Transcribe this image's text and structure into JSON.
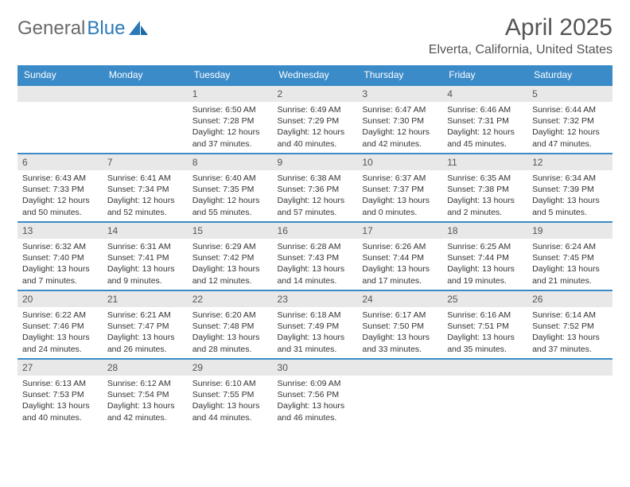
{
  "brand": {
    "part1": "General",
    "part2": "Blue"
  },
  "title": "April 2025",
  "location": "Elverta, California, United States",
  "header_bg": "#3b8bc8",
  "daynum_bg": "#e8e8e8",
  "weekdays": [
    "Sunday",
    "Monday",
    "Tuesday",
    "Wednesday",
    "Thursday",
    "Friday",
    "Saturday"
  ],
  "weeks": [
    [
      null,
      null,
      {
        "n": "1",
        "sr": "6:50 AM",
        "ss": "7:28 PM",
        "dl": "12 hours and 37 minutes."
      },
      {
        "n": "2",
        "sr": "6:49 AM",
        "ss": "7:29 PM",
        "dl": "12 hours and 40 minutes."
      },
      {
        "n": "3",
        "sr": "6:47 AM",
        "ss": "7:30 PM",
        "dl": "12 hours and 42 minutes."
      },
      {
        "n": "4",
        "sr": "6:46 AM",
        "ss": "7:31 PM",
        "dl": "12 hours and 45 minutes."
      },
      {
        "n": "5",
        "sr": "6:44 AM",
        "ss": "7:32 PM",
        "dl": "12 hours and 47 minutes."
      }
    ],
    [
      {
        "n": "6",
        "sr": "6:43 AM",
        "ss": "7:33 PM",
        "dl": "12 hours and 50 minutes."
      },
      {
        "n": "7",
        "sr": "6:41 AM",
        "ss": "7:34 PM",
        "dl": "12 hours and 52 minutes."
      },
      {
        "n": "8",
        "sr": "6:40 AM",
        "ss": "7:35 PM",
        "dl": "12 hours and 55 minutes."
      },
      {
        "n": "9",
        "sr": "6:38 AM",
        "ss": "7:36 PM",
        "dl": "12 hours and 57 minutes."
      },
      {
        "n": "10",
        "sr": "6:37 AM",
        "ss": "7:37 PM",
        "dl": "13 hours and 0 minutes."
      },
      {
        "n": "11",
        "sr": "6:35 AM",
        "ss": "7:38 PM",
        "dl": "13 hours and 2 minutes."
      },
      {
        "n": "12",
        "sr": "6:34 AM",
        "ss": "7:39 PM",
        "dl": "13 hours and 5 minutes."
      }
    ],
    [
      {
        "n": "13",
        "sr": "6:32 AM",
        "ss": "7:40 PM",
        "dl": "13 hours and 7 minutes."
      },
      {
        "n": "14",
        "sr": "6:31 AM",
        "ss": "7:41 PM",
        "dl": "13 hours and 9 minutes."
      },
      {
        "n": "15",
        "sr": "6:29 AM",
        "ss": "7:42 PM",
        "dl": "13 hours and 12 minutes."
      },
      {
        "n": "16",
        "sr": "6:28 AM",
        "ss": "7:43 PM",
        "dl": "13 hours and 14 minutes."
      },
      {
        "n": "17",
        "sr": "6:26 AM",
        "ss": "7:44 PM",
        "dl": "13 hours and 17 minutes."
      },
      {
        "n": "18",
        "sr": "6:25 AM",
        "ss": "7:44 PM",
        "dl": "13 hours and 19 minutes."
      },
      {
        "n": "19",
        "sr": "6:24 AM",
        "ss": "7:45 PM",
        "dl": "13 hours and 21 minutes."
      }
    ],
    [
      {
        "n": "20",
        "sr": "6:22 AM",
        "ss": "7:46 PM",
        "dl": "13 hours and 24 minutes."
      },
      {
        "n": "21",
        "sr": "6:21 AM",
        "ss": "7:47 PM",
        "dl": "13 hours and 26 minutes."
      },
      {
        "n": "22",
        "sr": "6:20 AM",
        "ss": "7:48 PM",
        "dl": "13 hours and 28 minutes."
      },
      {
        "n": "23",
        "sr": "6:18 AM",
        "ss": "7:49 PM",
        "dl": "13 hours and 31 minutes."
      },
      {
        "n": "24",
        "sr": "6:17 AM",
        "ss": "7:50 PM",
        "dl": "13 hours and 33 minutes."
      },
      {
        "n": "25",
        "sr": "6:16 AM",
        "ss": "7:51 PM",
        "dl": "13 hours and 35 minutes."
      },
      {
        "n": "26",
        "sr": "6:14 AM",
        "ss": "7:52 PM",
        "dl": "13 hours and 37 minutes."
      }
    ],
    [
      {
        "n": "27",
        "sr": "6:13 AM",
        "ss": "7:53 PM",
        "dl": "13 hours and 40 minutes."
      },
      {
        "n": "28",
        "sr": "6:12 AM",
        "ss": "7:54 PM",
        "dl": "13 hours and 42 minutes."
      },
      {
        "n": "29",
        "sr": "6:10 AM",
        "ss": "7:55 PM",
        "dl": "13 hours and 44 minutes."
      },
      {
        "n": "30",
        "sr": "6:09 AM",
        "ss": "7:56 PM",
        "dl": "13 hours and 46 minutes."
      },
      null,
      null,
      null
    ]
  ],
  "labels": {
    "sunrise": "Sunrise:",
    "sunset": "Sunset:",
    "daylight": "Daylight:"
  }
}
